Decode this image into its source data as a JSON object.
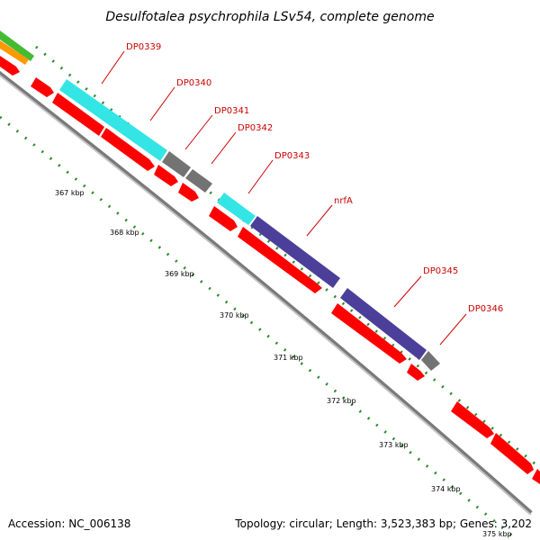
{
  "title": "Desulfotalea psychrophila LSv54, complete genome",
  "accession": "Accession: NC_006138",
  "summary": "Topology: circular; Length: 3,523,383 bp; Genes: 3,202",
  "colors": {
    "background": "#ffffff",
    "backbone_dark": "#7a7a7a",
    "backbone_light": "#c8c8c8",
    "cds_red": "#ff0000",
    "cds_red_shadow": "#a00000",
    "cyan": "#33e5e5",
    "gray_gene": "#737373",
    "navy": "#4b3f9a",
    "green": "#44bb33",
    "orange": "#ff9900",
    "tick": "#2a8a2a",
    "label_red": "#cc0000"
  },
  "gene_labels": [
    "DP0339",
    "DP0340",
    "DP0341",
    "DP0342",
    "DP0343",
    "nrfA",
    "DP0345",
    "DP0346"
  ],
  "kbp_ticks": [
    "367 kbp",
    "368 kbp",
    "369 kbp",
    "370 kbp",
    "371 kbp",
    "372 kbp",
    "373 kbp",
    "374 kbp",
    "375 kbp"
  ]
}
